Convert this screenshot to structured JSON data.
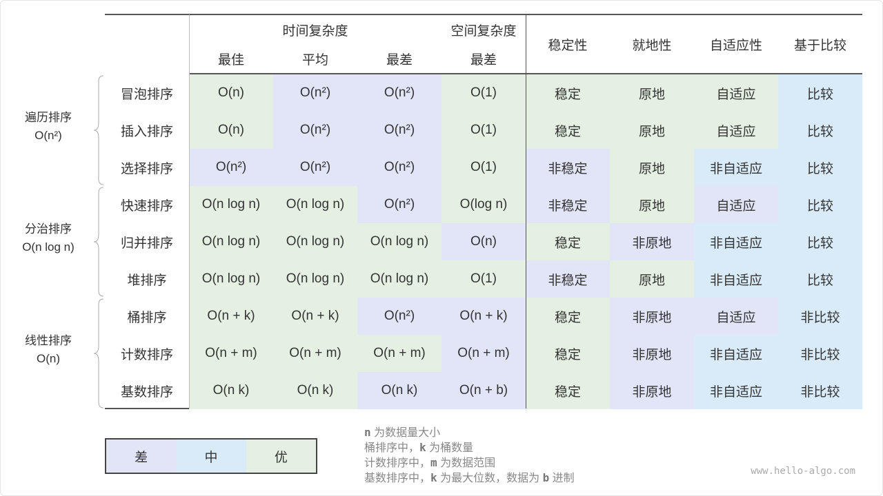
{
  "colors": {
    "poor": "#e1e5f7",
    "medium": "#d9ebf8",
    "good": "#e5f0e3"
  },
  "header": {
    "time_complexity": "时间复杂度",
    "space_complexity": "空间复杂度",
    "sub": [
      "最佳",
      "平均",
      "最差",
      "最差"
    ],
    "stability": "稳定性",
    "in_place": "就地性",
    "adaptive": "自适应性",
    "comparison": "基于比较"
  },
  "groups": [
    {
      "name": "遍历排序",
      "complexity": "O(n²)"
    },
    {
      "name": "分治排序",
      "complexity": "O(n log n)"
    },
    {
      "name": "线性排序",
      "complexity": "O(n)"
    }
  ],
  "rows": [
    {
      "algo": "冒泡排序",
      "cells": [
        "O(n)",
        "O(n²)",
        "O(n²)",
        "O(1)",
        "稳定",
        "原地",
        "自适应",
        "比较"
      ],
      "ratings": [
        "good",
        "poor",
        "poor",
        "good",
        "good",
        "good",
        "good",
        "medium"
      ]
    },
    {
      "algo": "插入排序",
      "cells": [
        "O(n)",
        "O(n²)",
        "O(n²)",
        "O(1)",
        "稳定",
        "原地",
        "自适应",
        "比较"
      ],
      "ratings": [
        "good",
        "poor",
        "poor",
        "good",
        "good",
        "good",
        "good",
        "medium"
      ]
    },
    {
      "algo": "选择排序",
      "cells": [
        "O(n²)",
        "O(n²)",
        "O(n²)",
        "O(1)",
        "非稳定",
        "原地",
        "非自适应",
        "比较"
      ],
      "ratings": [
        "poor",
        "poor",
        "poor",
        "good",
        "poor",
        "good",
        "medium",
        "medium"
      ]
    },
    {
      "algo": "快速排序",
      "cells": [
        "O(n log n)",
        "O(n log n)",
        "O(n²)",
        "O(log n)",
        "非稳定",
        "原地",
        "自适应",
        "比较"
      ],
      "ratings": [
        "good",
        "good",
        "poor",
        "good",
        "poor",
        "good",
        "poor",
        "medium"
      ]
    },
    {
      "algo": "归并排序",
      "cells": [
        "O(n log n)",
        "O(n log n)",
        "O(n log n)",
        "O(n)",
        "稳定",
        "非原地",
        "非自适应",
        "比较"
      ],
      "ratings": [
        "good",
        "good",
        "good",
        "poor",
        "good",
        "poor",
        "medium",
        "medium"
      ]
    },
    {
      "algo": "堆排序",
      "cells": [
        "O(n log n)",
        "O(n log n)",
        "O(n log n)",
        "O(1)",
        "非稳定",
        "原地",
        "非自适应",
        "比较"
      ],
      "ratings": [
        "good",
        "good",
        "good",
        "good",
        "poor",
        "good",
        "medium",
        "medium"
      ]
    },
    {
      "algo": "桶排序",
      "cells": [
        "O(n + k)",
        "O(n + k)",
        "O(n²)",
        "O(n + k)",
        "稳定",
        "非原地",
        "自适应",
        "非比较"
      ],
      "ratings": [
        "good",
        "good",
        "poor",
        "poor",
        "good",
        "poor",
        "poor",
        "medium"
      ]
    },
    {
      "algo": "计数排序",
      "cells": [
        "O(n + m)",
        "O(n + m)",
        "O(n + m)",
        "O(n + m)",
        "稳定",
        "非原地",
        "非自适应",
        "非比较"
      ],
      "ratings": [
        "good",
        "good",
        "good",
        "poor",
        "good",
        "poor",
        "medium",
        "medium"
      ]
    },
    {
      "algo": "基数排序",
      "cells": [
        "O(n k)",
        "O(n k)",
        "O(n k)",
        "O(n + b)",
        "稳定",
        "非原地",
        "非自适应",
        "非比较"
      ],
      "ratings": [
        "good",
        "good",
        "poor",
        "poor",
        "good",
        "poor",
        "medium",
        "medium"
      ]
    }
  ],
  "legend": {
    "poor": "差",
    "medium": "中",
    "good": "优"
  },
  "notes": [
    {
      "var": "n",
      "pre": "",
      "text": " 为数据量大小"
    },
    {
      "var": "k",
      "pre": "桶排序中，",
      "text": " 为桶数量"
    },
    {
      "var": "m",
      "pre": "计数排序中，",
      "text": " 为数据范围"
    },
    {
      "var": "k",
      "pre": "基数排序中，",
      "text": " 为最大位数，数据为 ",
      "var2": "b",
      "post": " 进制"
    }
  ],
  "watermark": "www.hello-algo.com"
}
